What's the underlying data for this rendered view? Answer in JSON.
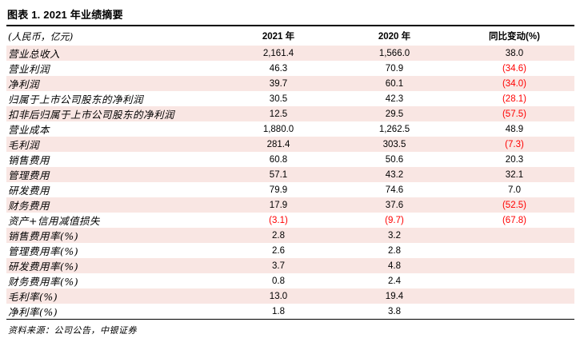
{
  "title": "图表 1. 2021 年业绩摘要",
  "source_note": "资料来源：公司公告，中银证券",
  "colors": {
    "negative_value": "#ff0000",
    "row_stripe": "#f9e6e3",
    "rule_line": "#000000"
  },
  "table": {
    "columns": {
      "unit": "(人民币，亿元)",
      "y2021": "2021 年",
      "y2020": "2020 年",
      "yoy": "同比变动(%)"
    },
    "rows": [
      {
        "label": "营业总收入",
        "y2021": "2,161.4",
        "y2020": "1,566.0",
        "yoy": "38.0"
      },
      {
        "label": "营业利润",
        "y2021": "46.3",
        "y2020": "70.9",
        "yoy": "(34.6)"
      },
      {
        "label": "净利润",
        "y2021": "39.7",
        "y2020": "60.1",
        "yoy": "(34.0)"
      },
      {
        "label": "归属于上市公司股东的净利润",
        "y2021": "30.5",
        "y2020": "42.3",
        "yoy": "(28.1)"
      },
      {
        "label": "扣非后归属于上市公司股东的净利润",
        "y2021": "12.5",
        "y2020": "29.5",
        "yoy": "(57.5)"
      },
      {
        "label": "营业成本",
        "y2021": "1,880.0",
        "y2020": "1,262.5",
        "yoy": "48.9"
      },
      {
        "label": "毛利润",
        "y2021": "281.4",
        "y2020": "303.5",
        "yoy": "(7.3)"
      },
      {
        "label": "销售费用",
        "y2021": "60.8",
        "y2020": "50.6",
        "yoy": "20.3"
      },
      {
        "label": "管理费用",
        "y2021": "57.1",
        "y2020": "43.2",
        "yoy": "32.1"
      },
      {
        "label": "研发费用",
        "y2021": "79.9",
        "y2020": "74.6",
        "yoy": "7.0"
      },
      {
        "label": "财务费用",
        "y2021": "17.9",
        "y2020": "37.6",
        "yoy": "(52.5)"
      },
      {
        "label": "资产+信用减值损失",
        "y2021": "(3.1)",
        "y2020": "(9.7)",
        "yoy": "(67.8)"
      },
      {
        "label": "销售费用率(%)",
        "y2021": "2.8",
        "y2020": "3.2",
        "yoy": ""
      },
      {
        "label": "管理费用率(%)",
        "y2021": "2.6",
        "y2020": "2.8",
        "yoy": ""
      },
      {
        "label": "研发费用率(%)",
        "y2021": "3.7",
        "y2020": "4.8",
        "yoy": ""
      },
      {
        "label": "财务费用率(%)",
        "y2021": "0.8",
        "y2020": "2.4",
        "yoy": ""
      },
      {
        "label": "毛利率(%)",
        "y2021": "13.0",
        "y2020": "19.4",
        "yoy": ""
      },
      {
        "label": "净利率(%)",
        "y2021": "1.8",
        "y2020": "3.8",
        "yoy": ""
      }
    ]
  }
}
